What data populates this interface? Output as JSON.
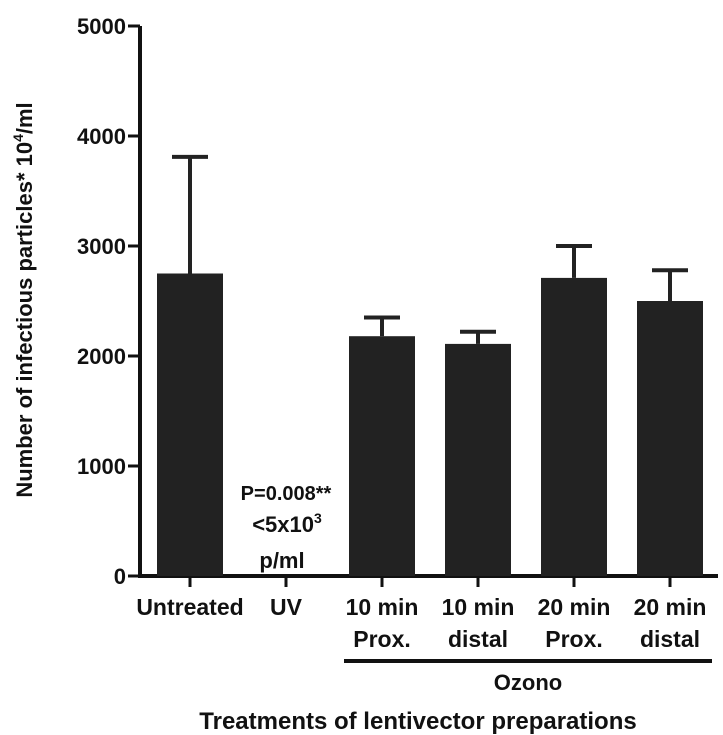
{
  "chart_data": {
    "type": "bar",
    "title": "",
    "ylabel": "Number of infectious particles* 10",
    "ylabel_sup": "4",
    "ylabel_suffix": "/ml",
    "xlabel": "Treatments of lentivector preparations",
    "ylim": [
      0,
      5000
    ],
    "yticks": [
      0,
      1000,
      2000,
      3000,
      4000,
      5000
    ],
    "categories": [
      [
        "Untreated"
      ],
      [
        "UV"
      ],
      [
        "10 min",
        "Prox."
      ],
      [
        "10 min",
        "distal"
      ],
      [
        "20 min",
        "Prox."
      ],
      [
        "20 min",
        "distal"
      ]
    ],
    "values": [
      2750,
      0,
      2180,
      2110,
      2710,
      2500
    ],
    "errors": [
      1060,
      0,
      170,
      110,
      290,
      280
    ],
    "group_label": "Ozono",
    "group_range": [
      2,
      5
    ],
    "annotation": {
      "line1": "P=0.008**",
      "line2_base": "<5x10",
      "line2_sup": "3",
      "line3": "p/ml"
    }
  }
}
